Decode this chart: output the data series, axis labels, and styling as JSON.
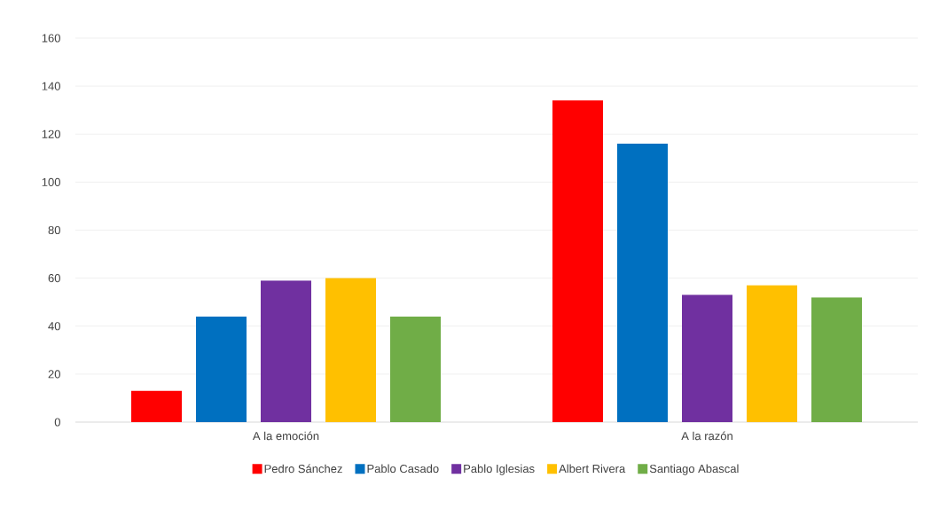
{
  "chart_data": {
    "type": "bar",
    "categories": [
      "A la emoción",
      "A la razón"
    ],
    "series": [
      {
        "name": "Pedro Sánchez",
        "color": "#ff0000",
        "values": [
          13,
          134
        ]
      },
      {
        "name": "Pablo Casado",
        "color": "#0070c0",
        "values": [
          44,
          116
        ]
      },
      {
        "name": "Pablo Iglesias",
        "color": "#7030a0",
        "values": [
          59,
          53
        ]
      },
      {
        "name": "Albert Rivera",
        "color": "#ffc000",
        "values": [
          60,
          57
        ]
      },
      {
        "name": "Santiago Abascal",
        "color": "#70ad47",
        "values": [
          44,
          52
        ]
      }
    ],
    "ylim": [
      0,
      160
    ],
    "yticks": [
      0,
      20,
      40,
      60,
      80,
      100,
      120,
      140,
      160
    ],
    "grid": "y",
    "legend": "bottom"
  }
}
